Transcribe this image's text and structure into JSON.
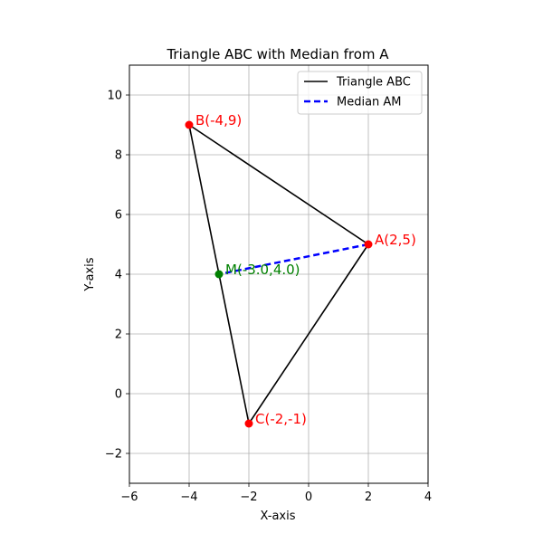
{
  "chart_data": {
    "type": "line",
    "title": "Triangle ABC with Median from A",
    "xlabel": "X-axis",
    "ylabel": "Y-axis",
    "xlim": [
      -6,
      4
    ],
    "ylim": [
      -3,
      11
    ],
    "xticks": [
      -6,
      -4,
      -2,
      0,
      2,
      4
    ],
    "xtick_labels": [
      "−6",
      "−4",
      "−2",
      "0",
      "2",
      "4"
    ],
    "yticks": [
      -2,
      0,
      2,
      4,
      6,
      8,
      10
    ],
    "ytick_labels": [
      "−2",
      "0",
      "2",
      "4",
      "6",
      "8",
      "10"
    ],
    "grid": true,
    "legend_position": "top-right",
    "series": [
      {
        "name": "Triangle ABC",
        "color": "#000000",
        "style": "solid",
        "x": [
          2,
          -4,
          -2,
          2
        ],
        "y": [
          5,
          9,
          -1,
          5
        ]
      },
      {
        "name": "Median AM",
        "color": "#0000ff",
        "style": "dashed",
        "x": [
          2,
          -3
        ],
        "y": [
          5,
          4
        ]
      }
    ],
    "points": [
      {
        "label": "A(2,5)",
        "x": 2,
        "y": 5,
        "color": "#ff0000"
      },
      {
        "label": "B(-4,9)",
        "x": -4,
        "y": 9,
        "color": "#ff0000"
      },
      {
        "label": "C(-2,-1)",
        "x": -2,
        "y": -1,
        "color": "#ff0000"
      },
      {
        "label": "M(-3.0,4.0)",
        "x": -3,
        "y": 4,
        "color": "#008000"
      }
    ]
  }
}
